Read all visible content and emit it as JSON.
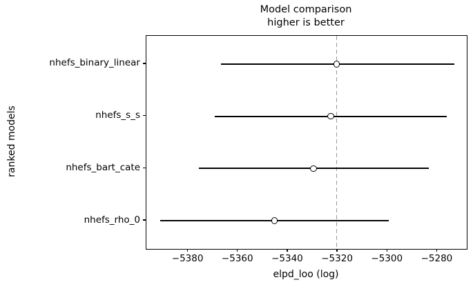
{
  "title": {
    "line1": "Model comparison",
    "line2": "higher is better"
  },
  "axes": {
    "xlabel": "elpd_loo (log)",
    "ylabel": "ranked models"
  },
  "colors": {
    "line": "#000000",
    "marker_fill": "#ffffff",
    "marker_edge": "#000000",
    "reference_line": "#999999",
    "spine": "#000000",
    "text": "#000000",
    "background": "#ffffff"
  },
  "chart_data": {
    "type": "scatter",
    "title": "Model comparison\nhigher is better",
    "xlabel": "elpd_loo (log)",
    "ylabel": "ranked models",
    "xlim": [
      -5396.8,
      -5268.2
    ],
    "grid": false,
    "legend": false,
    "x_ticks": [
      {
        "value": -5380,
        "label": "−5380"
      },
      {
        "value": -5360,
        "label": "−5360"
      },
      {
        "value": -5340,
        "label": "−5340"
      },
      {
        "value": -5320,
        "label": "−5320"
      },
      {
        "value": -5300,
        "label": "−5300"
      },
      {
        "value": -5280,
        "label": "−5280"
      }
    ],
    "models": [
      {
        "name": "nhefs_binary_linear",
        "elpd_loo": -5320.4,
        "ci_low": -5366.9,
        "ci_high": -5273.3
      },
      {
        "name": "nhefs_s_s",
        "elpd_loo": -5322.8,
        "ci_low": -5369.4,
        "ci_high": -5276.1
      },
      {
        "name": "nhefs_bart_cate",
        "elpd_loo": -5329.7,
        "ci_low": -5375.8,
        "ci_high": -5283.5
      },
      {
        "name": "nhefs_rho_0",
        "elpd_loo": -5345.4,
        "ci_low": -5391.3,
        "ci_high": -5299.6
      }
    ],
    "reference_line": {
      "value": -5320.4,
      "style": "dashed"
    },
    "row_fraction_start": 0.1325,
    "row_fraction_step": 0.245
  }
}
